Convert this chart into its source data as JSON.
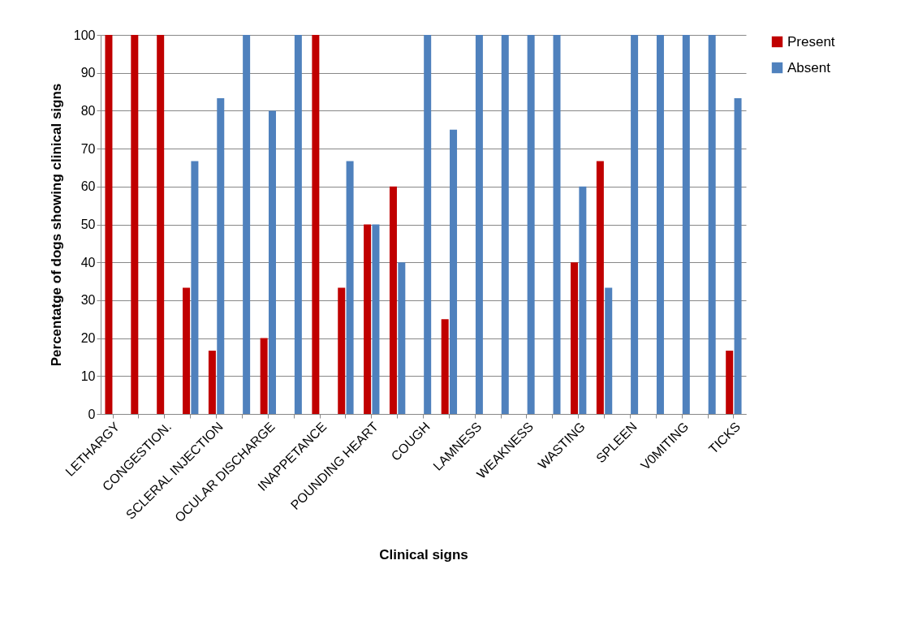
{
  "chart_data": {
    "type": "bar",
    "xlabel": "Clinical signs",
    "ylabel": "Percentatge of dogs showing clinical signs",
    "categories": [
      "LETHARGY",
      null,
      "CONGESTION.",
      null,
      "SCLERAL INJECTION",
      null,
      "OCULAR DISCHARGE",
      null,
      "INAPPETANCE",
      null,
      "POUNDING HEART",
      null,
      "COUGH",
      null,
      "LAMNESS",
      null,
      "WEAKNESS",
      null,
      "WASTING",
      null,
      "SPLEEN",
      null,
      "V0MITING",
      null,
      "TICKS"
    ],
    "series": [
      {
        "name": "Present",
        "color": "#c00000",
        "values": [
          100,
          100,
          100,
          33.3,
          16.7,
          0,
          20,
          0,
          100,
          33.3,
          50,
          60,
          0,
          25,
          0,
          0,
          0,
          0,
          40,
          66.7,
          0,
          0,
          0,
          0,
          16.7
        ]
      },
      {
        "name": "Absent",
        "color": "#4f81bd",
        "values": [
          0,
          0,
          0,
          66.7,
          83.3,
          100,
          80,
          100,
          0,
          66.7,
          50,
          40,
          100,
          75,
          100,
          100,
          100,
          100,
          60,
          33.3,
          100,
          100,
          100,
          100,
          83.3
        ]
      }
    ],
    "ylim": [
      0,
      100
    ],
    "yticks": [
      0,
      10,
      20,
      30,
      40,
      50,
      60,
      70,
      80,
      90,
      100
    ],
    "grid": "y",
    "legend": "right"
  }
}
